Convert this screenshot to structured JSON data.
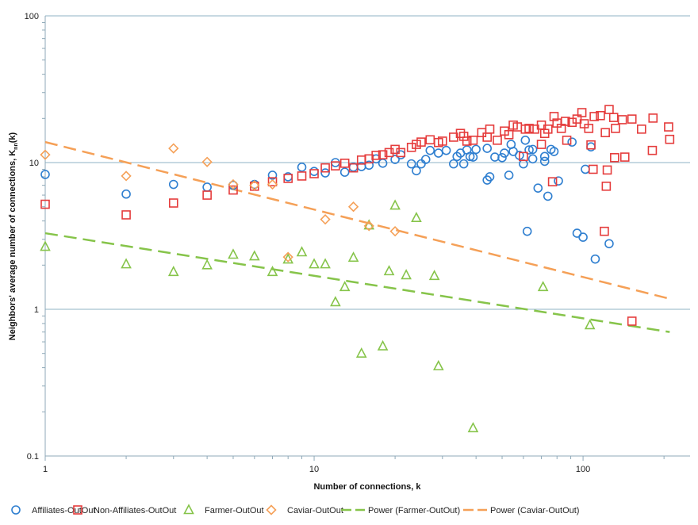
{
  "chart_data": {
    "type": "scatter",
    "xscale": "log",
    "yscale": "log",
    "xlim": [
      1,
      250
    ],
    "ylim": [
      0.1,
      100
    ],
    "grid": "horizontal major",
    "legend_position": "bottom",
    "xlabel": "Number of connections, k",
    "ylabel_main": "Neighbors' average number of connections,  K",
    "ylabel_sub": "nn",
    "ylabel_tail": "(k)",
    "xticks": [
      {
        "v": 1,
        "label": "1"
      },
      {
        "v": 10,
        "label": "10"
      },
      {
        "v": 100,
        "label": "100"
      }
    ],
    "yticks": [
      {
        "v": 0.1,
        "label": "0.1"
      },
      {
        "v": 1,
        "label": "1"
      },
      {
        "v": 10,
        "label": "10"
      },
      {
        "v": 100,
        "label": "100"
      }
    ],
    "colors": {
      "grid": "#8fb3c6",
      "axis": "#8fa9b8",
      "affiliates": "#2f7fd0",
      "non_affiliates": "#e53c3c",
      "farmer": "#86c44a",
      "caviar": "#f5a057"
    },
    "series": [
      {
        "name": "Affiliates-OutOut",
        "marker": "circle",
        "color": "#2f7fd0",
        "points": [
          [
            1,
            8.3
          ],
          [
            2,
            6.1
          ],
          [
            3,
            7.1
          ],
          [
            4,
            6.8
          ],
          [
            5,
            7.0
          ],
          [
            6,
            7.1
          ],
          [
            7,
            8.2
          ],
          [
            8,
            8.0
          ],
          [
            9,
            9.3
          ],
          [
            10,
            8.7
          ],
          [
            11,
            8.5
          ],
          [
            12,
            10.0
          ],
          [
            13,
            8.6
          ],
          [
            14,
            9.3
          ],
          [
            15,
            9.4
          ],
          [
            16,
            9.6
          ],
          [
            17,
            10.6
          ],
          [
            18,
            9.9
          ],
          [
            20,
            10.5
          ],
          [
            21,
            11.3
          ],
          [
            23,
            9.8
          ],
          [
            24,
            8.8
          ],
          [
            25,
            9.8
          ],
          [
            26,
            10.5
          ],
          [
            27,
            12.1
          ],
          [
            29,
            11.6
          ],
          [
            31,
            12.1
          ],
          [
            33,
            9.8
          ],
          [
            34,
            11.0
          ],
          [
            35,
            11.6
          ],
          [
            36,
            9.8
          ],
          [
            37,
            12.2
          ],
          [
            38,
            11.0
          ],
          [
            39,
            10.9
          ],
          [
            40,
            12.3
          ],
          [
            44,
            7.6
          ],
          [
            45,
            8.0
          ],
          [
            44,
            12.5
          ],
          [
            47,
            10.9
          ],
          [
            50,
            10.8
          ],
          [
            51,
            11.6
          ],
          [
            53,
            8.2
          ],
          [
            54,
            13.3
          ],
          [
            55,
            11.9
          ],
          [
            58,
            11.2
          ],
          [
            60,
            9.8
          ],
          [
            61,
            14.2
          ],
          [
            63,
            12.2
          ],
          [
            65,
            12.3
          ],
          [
            65,
            10.6
          ],
          [
            62,
            3.4
          ],
          [
            68,
            6.7
          ],
          [
            72,
            11.0
          ],
          [
            72,
            10.2
          ],
          [
            74,
            5.9
          ],
          [
            76,
            12.3
          ],
          [
            78,
            11.9
          ],
          [
            81,
            7.5
          ],
          [
            91,
            13.8
          ],
          [
            95,
            3.3
          ],
          [
            100,
            3.1
          ],
          [
            102,
            9.0
          ],
          [
            107,
            12.8
          ],
          [
            111,
            2.2
          ],
          [
            125,
            2.8
          ]
        ]
      },
      {
        "name": "Non-Affiliates-OutOut",
        "marker": "square",
        "color": "#e53c3c",
        "points": [
          [
            1,
            5.2
          ],
          [
            2,
            4.4
          ],
          [
            3,
            5.3
          ],
          [
            4,
            6.0
          ],
          [
            5,
            6.5
          ],
          [
            6,
            6.9
          ],
          [
            7,
            7.4
          ],
          [
            8,
            7.8
          ],
          [
            9,
            8.1
          ],
          [
            10,
            8.4
          ],
          [
            11,
            9.2
          ],
          [
            12,
            9.5
          ],
          [
            13,
            9.9
          ],
          [
            14,
            9.2
          ],
          [
            15,
            10.4
          ],
          [
            16,
            10.6
          ],
          [
            17,
            11.2
          ],
          [
            18,
            11.3
          ],
          [
            19,
            11.7
          ],
          [
            20,
            12.3
          ],
          [
            21,
            11.7
          ],
          [
            23,
            12.7
          ],
          [
            24,
            13.3
          ],
          [
            25,
            13.8
          ],
          [
            27,
            14.3
          ],
          [
            29,
            13.7
          ],
          [
            30,
            14.0
          ],
          [
            33,
            14.9
          ],
          [
            35,
            15.8
          ],
          [
            36,
            15.1
          ],
          [
            37,
            14.0
          ],
          [
            39,
            14.2
          ],
          [
            42,
            16.0
          ],
          [
            44,
            14.9
          ],
          [
            45,
            16.9
          ],
          [
            48,
            14.2
          ],
          [
            51,
            16.4
          ],
          [
            53,
            15.5
          ],
          [
            55,
            18.0
          ],
          [
            57,
            17.5
          ],
          [
            61,
            16.9
          ],
          [
            60,
            11.0
          ],
          [
            63,
            17.1
          ],
          [
            66,
            16.9
          ],
          [
            70,
            18.0
          ],
          [
            70,
            13.3
          ],
          [
            72,
            15.8
          ],
          [
            74,
            16.9
          ],
          [
            78,
            20.6
          ],
          [
            77,
            7.4
          ],
          [
            80,
            18.6
          ],
          [
            83,
            17.1
          ],
          [
            86,
            19.1
          ],
          [
            87,
            14.2
          ],
          [
            91,
            18.8
          ],
          [
            95,
            19.8
          ],
          [
            99,
            21.9
          ],
          [
            101,
            18.4
          ],
          [
            105,
            17.1
          ],
          [
            107,
            13.2
          ],
          [
            109,
            9.0
          ],
          [
            110,
            20.6
          ],
          [
            116,
            20.9
          ],
          [
            120,
            3.4
          ],
          [
            121,
            16.0
          ],
          [
            123,
            8.9
          ],
          [
            122,
            6.9
          ],
          [
            125,
            23.0
          ],
          [
            130,
            20.3
          ],
          [
            131,
            10.8
          ],
          [
            132,
            17.1
          ],
          [
            140,
            19.6
          ],
          [
            143,
            10.9
          ],
          [
            152,
            19.8
          ],
          [
            152,
            0.83
          ],
          [
            165,
            16.9
          ],
          [
            181,
            12.1
          ],
          [
            182,
            20.1
          ],
          [
            208,
            17.5
          ],
          [
            210,
            14.4
          ]
        ]
      },
      {
        "name": "Farmer-OutOut",
        "marker": "triangle",
        "color": "#86c44a",
        "points": [
          [
            1,
            2.67
          ],
          [
            2,
            2.03
          ],
          [
            3,
            1.8
          ],
          [
            4,
            2.0
          ],
          [
            5,
            2.36
          ],
          [
            6,
            2.3
          ],
          [
            7,
            1.8
          ],
          [
            8,
            2.19
          ],
          [
            9,
            2.45
          ],
          [
            10,
            2.03
          ],
          [
            11,
            2.03
          ],
          [
            12,
            1.12
          ],
          [
            13,
            1.42
          ],
          [
            14,
            2.25
          ],
          [
            15,
            0.5
          ],
          [
            16,
            3.74
          ],
          [
            18,
            0.56
          ],
          [
            19,
            1.82
          ],
          [
            20,
            5.1
          ],
          [
            22,
            1.71
          ],
          [
            24,
            4.2
          ],
          [
            28,
            1.69
          ],
          [
            29,
            0.41
          ],
          [
            39,
            0.155
          ],
          [
            71,
            1.42
          ],
          [
            106,
            0.78
          ]
        ]
      },
      {
        "name": "Caviar-OutOut",
        "marker": "diamond",
        "color": "#f5a057",
        "points": [
          [
            1,
            11.3
          ],
          [
            2,
            8.1
          ],
          [
            3,
            12.5
          ],
          [
            4,
            10.1
          ],
          [
            5,
            7.1
          ],
          [
            6,
            7.0
          ],
          [
            7,
            7.1
          ],
          [
            8,
            2.27
          ],
          [
            11,
            4.1
          ],
          [
            14,
            5.0
          ],
          [
            16,
            3.7
          ],
          [
            20,
            3.4
          ]
        ]
      }
    ],
    "trendlines": [
      {
        "name": "Power (Farmer-OutOut)",
        "type": "power",
        "color": "#86c44a",
        "a": 3.3,
        "b": -0.29,
        "k_range": [
          1,
          210
        ]
      },
      {
        "name": "Power (Caviar-OutOut)",
        "type": "power",
        "color": "#f5a057",
        "a": 13.8,
        "b": -0.46,
        "k_range": [
          1,
          210
        ]
      }
    ]
  }
}
